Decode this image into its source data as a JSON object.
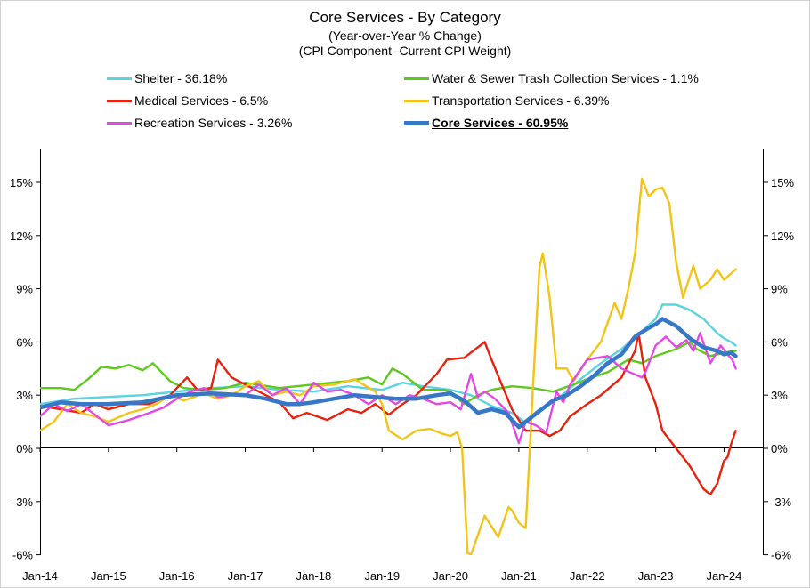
{
  "chart_data": {
    "type": "line",
    "title": "Core Services - By Category",
    "subtitle_1": "(Year-over-Year % Change)",
    "subtitle_2": "(CPI Component -Current CPI Weight)",
    "xlabel": "",
    "ylabel": "",
    "ylim": [
      -6,
      17
    ],
    "y_ticks": [
      -6,
      -3,
      0,
      3,
      6,
      9,
      12,
      15
    ],
    "y_tick_labels": [
      "-6%",
      "-3%",
      "0%",
      "3%",
      "6%",
      "9%",
      "12%",
      "15%"
    ],
    "x_tick_labels": [
      "Jan-14",
      "Jan-15",
      "Jan-16",
      "Jan-17",
      "Jan-18",
      "Jan-19",
      "Jan-20",
      "Jan-21",
      "Jan-22",
      "Jan-23",
      "Jan-24"
    ],
    "x_range_years": [
      2014.0,
      2024.58
    ],
    "grid": false,
    "legend_placement": "top",
    "series": [
      {
        "name": "Shelter - 36.18%",
        "color": "#5bd3e0",
        "points": [
          [
            2014.0,
            2.5
          ],
          [
            2014.5,
            2.8
          ],
          [
            2015.0,
            2.9
          ],
          [
            2015.5,
            3.0
          ],
          [
            2016.0,
            3.2
          ],
          [
            2016.5,
            3.4
          ],
          [
            2017.0,
            3.5
          ],
          [
            2017.5,
            3.3
          ],
          [
            2018.0,
            3.2
          ],
          [
            2018.5,
            3.5
          ],
          [
            2019.0,
            3.3
          ],
          [
            2019.3,
            3.7
          ],
          [
            2019.6,
            3.5
          ],
          [
            2020.0,
            3.3
          ],
          [
            2020.3,
            3.0
          ],
          [
            2020.6,
            2.4
          ],
          [
            2020.9,
            2.0
          ],
          [
            2021.08,
            1.5
          ],
          [
            2021.3,
            2.2
          ],
          [
            2021.6,
            2.9
          ],
          [
            2021.9,
            3.9
          ],
          [
            2022.2,
            4.8
          ],
          [
            2022.5,
            5.6
          ],
          [
            2022.8,
            6.6
          ],
          [
            2023.0,
            7.3
          ],
          [
            2023.1,
            8.1
          ],
          [
            2023.3,
            8.1
          ],
          [
            2023.5,
            7.8
          ],
          [
            2023.7,
            7.3
          ],
          [
            2023.9,
            6.5
          ],
          [
            2024.0,
            6.2
          ],
          [
            2024.1,
            6.0
          ],
          [
            2024.17,
            5.8
          ]
        ]
      },
      {
        "name": "Water & Sewer Trash Collection Services - 1.1%",
        "color": "#5fc81e",
        "points": [
          [
            2014.0,
            3.4
          ],
          [
            2014.3,
            3.4
          ],
          [
            2014.5,
            3.3
          ],
          [
            2014.7,
            3.9
          ],
          [
            2014.9,
            4.6
          ],
          [
            2015.1,
            4.5
          ],
          [
            2015.3,
            4.7
          ],
          [
            2015.5,
            4.4
          ],
          [
            2015.65,
            4.8
          ],
          [
            2015.9,
            3.8
          ],
          [
            2016.1,
            3.4
          ],
          [
            2016.4,
            3.3
          ],
          [
            2016.7,
            3.4
          ],
          [
            2017.0,
            3.7
          ],
          [
            2017.5,
            3.4
          ],
          [
            2018.0,
            3.6
          ],
          [
            2018.5,
            3.8
          ],
          [
            2018.8,
            4.0
          ],
          [
            2019.0,
            3.6
          ],
          [
            2019.15,
            4.5
          ],
          [
            2019.3,
            4.2
          ],
          [
            2019.6,
            3.3
          ],
          [
            2019.9,
            3.3
          ],
          [
            2020.0,
            3.2
          ],
          [
            2020.2,
            2.5
          ],
          [
            2020.4,
            3.0
          ],
          [
            2020.6,
            3.3
          ],
          [
            2020.9,
            3.5
          ],
          [
            2021.2,
            3.4
          ],
          [
            2021.5,
            3.2
          ],
          [
            2021.8,
            3.6
          ],
          [
            2022.0,
            3.9
          ],
          [
            2022.3,
            4.3
          ],
          [
            2022.6,
            5.0
          ],
          [
            2022.8,
            4.8
          ],
          [
            2023.0,
            5.2
          ],
          [
            2023.3,
            5.6
          ],
          [
            2023.5,
            6.0
          ],
          [
            2023.6,
            5.6
          ],
          [
            2023.8,
            5.2
          ],
          [
            2024.0,
            5.4
          ],
          [
            2024.17,
            5.5
          ]
        ]
      },
      {
        "name": "Medical Services - 6.5%",
        "color": "#e8200c",
        "points": [
          [
            2014.0,
            2.4
          ],
          [
            2014.3,
            2.2
          ],
          [
            2014.6,
            2.0
          ],
          [
            2014.8,
            2.5
          ],
          [
            2015.0,
            2.2
          ],
          [
            2015.3,
            2.5
          ],
          [
            2015.6,
            2.5
          ],
          [
            2015.9,
            3.0
          ],
          [
            2016.15,
            4.0
          ],
          [
            2016.3,
            3.3
          ],
          [
            2016.5,
            3.4
          ],
          [
            2016.6,
            5.0
          ],
          [
            2016.8,
            4.0
          ],
          [
            2017.0,
            3.6
          ],
          [
            2017.3,
            3.0
          ],
          [
            2017.5,
            2.6
          ],
          [
            2017.7,
            1.7
          ],
          [
            2017.9,
            2.0
          ],
          [
            2018.2,
            1.6
          ],
          [
            2018.5,
            2.2
          ],
          [
            2018.7,
            2.0
          ],
          [
            2018.9,
            2.5
          ],
          [
            2019.1,
            1.9
          ],
          [
            2019.3,
            2.5
          ],
          [
            2019.5,
            3.0
          ],
          [
            2019.8,
            4.2
          ],
          [
            2019.95,
            5.0
          ],
          [
            2020.2,
            5.1
          ],
          [
            2020.4,
            5.7
          ],
          [
            2020.5,
            6.0
          ],
          [
            2020.6,
            5.0
          ],
          [
            2020.75,
            3.6
          ],
          [
            2020.9,
            2.2
          ],
          [
            2021.1,
            1.0
          ],
          [
            2021.3,
            1.0
          ],
          [
            2021.45,
            0.7
          ],
          [
            2021.6,
            1.0
          ],
          [
            2021.75,
            1.8
          ],
          [
            2022.0,
            2.5
          ],
          [
            2022.2,
            3.0
          ],
          [
            2022.5,
            4.0
          ],
          [
            2022.7,
            5.5
          ],
          [
            2022.75,
            6.5
          ],
          [
            2022.85,
            4.0
          ],
          [
            2023.0,
            2.5
          ],
          [
            2023.1,
            1.0
          ],
          [
            2023.3,
            0.0
          ],
          [
            2023.5,
            -1.0
          ],
          [
            2023.7,
            -2.3
          ],
          [
            2023.8,
            -2.6
          ],
          [
            2023.9,
            -2.0
          ],
          [
            2024.0,
            -0.7
          ],
          [
            2024.05,
            -0.5
          ],
          [
            2024.1,
            0.2
          ],
          [
            2024.17,
            1.0
          ]
        ]
      },
      {
        "name": "Transportation Services - 6.39%",
        "color": "#f2c418",
        "points": [
          [
            2014.0,
            1.0
          ],
          [
            2014.2,
            1.5
          ],
          [
            2014.4,
            2.5
          ],
          [
            2014.6,
            2.0
          ],
          [
            2014.8,
            1.8
          ],
          [
            2015.0,
            1.5
          ],
          [
            2015.3,
            2.0
          ],
          [
            2015.5,
            2.2
          ],
          [
            2015.7,
            2.5
          ],
          [
            2015.9,
            3.0
          ],
          [
            2016.1,
            2.7
          ],
          [
            2016.4,
            3.1
          ],
          [
            2016.6,
            2.8
          ],
          [
            2016.8,
            3.0
          ],
          [
            2017.0,
            3.5
          ],
          [
            2017.2,
            3.8
          ],
          [
            2017.4,
            3.0
          ],
          [
            2017.6,
            3.2
          ],
          [
            2017.8,
            3.0
          ],
          [
            2018.0,
            3.5
          ],
          [
            2018.3,
            3.6
          ],
          [
            2018.6,
            3.9
          ],
          [
            2018.9,
            3.2
          ],
          [
            2019.0,
            2.5
          ],
          [
            2019.1,
            1.0
          ],
          [
            2019.3,
            0.5
          ],
          [
            2019.5,
            1.0
          ],
          [
            2019.7,
            1.1
          ],
          [
            2019.9,
            0.8
          ],
          [
            2020.0,
            0.7
          ],
          [
            2020.1,
            0.9
          ],
          [
            2020.17,
            0.0
          ],
          [
            2020.25,
            -5.9
          ],
          [
            2020.3,
            -6.0
          ],
          [
            2020.5,
            -3.8
          ],
          [
            2020.7,
            -5.0
          ],
          [
            2020.85,
            -3.3
          ],
          [
            2020.9,
            -3.5
          ],
          [
            2021.0,
            -4.2
          ],
          [
            2021.1,
            -4.5
          ],
          [
            2021.2,
            3.0
          ],
          [
            2021.3,
            10.2
          ],
          [
            2021.35,
            11.0
          ],
          [
            2021.45,
            8.5
          ],
          [
            2021.55,
            4.5
          ],
          [
            2021.7,
            4.5
          ],
          [
            2021.8,
            3.8
          ],
          [
            2022.0,
            5.0
          ],
          [
            2022.2,
            6.0
          ],
          [
            2022.4,
            8.2
          ],
          [
            2022.5,
            7.3
          ],
          [
            2022.6,
            9.0
          ],
          [
            2022.7,
            11.0
          ],
          [
            2022.8,
            15.2
          ],
          [
            2022.9,
            14.2
          ],
          [
            2023.0,
            14.6
          ],
          [
            2023.1,
            14.7
          ],
          [
            2023.2,
            13.8
          ],
          [
            2023.3,
            10.5
          ],
          [
            2023.4,
            8.5
          ],
          [
            2023.55,
            10.3
          ],
          [
            2023.65,
            9.0
          ],
          [
            2023.8,
            9.5
          ],
          [
            2023.9,
            10.1
          ],
          [
            2024.0,
            9.5
          ],
          [
            2024.17,
            10.1
          ]
        ]
      },
      {
        "name": "Recreation Services - 3.26%",
        "color": "#e448e4",
        "points": [
          [
            2014.0,
            1.8
          ],
          [
            2014.2,
            2.5
          ],
          [
            2014.4,
            2.1
          ],
          [
            2014.6,
            2.5
          ],
          [
            2014.8,
            1.9
          ],
          [
            2015.0,
            1.3
          ],
          [
            2015.3,
            1.6
          ],
          [
            2015.6,
            2.0
          ],
          [
            2015.8,
            2.3
          ],
          [
            2016.0,
            2.8
          ],
          [
            2016.2,
            3.2
          ],
          [
            2016.4,
            3.4
          ],
          [
            2016.6,
            2.9
          ],
          [
            2016.8,
            3.0
          ],
          [
            2017.0,
            3.0
          ],
          [
            2017.2,
            3.6
          ],
          [
            2017.4,
            3.0
          ],
          [
            2017.6,
            3.4
          ],
          [
            2017.8,
            2.5
          ],
          [
            2018.0,
            3.7
          ],
          [
            2018.2,
            3.2
          ],
          [
            2018.4,
            3.3
          ],
          [
            2018.6,
            3.0
          ],
          [
            2018.8,
            2.5
          ],
          [
            2019.0,
            3.0
          ],
          [
            2019.2,
            2.5
          ],
          [
            2019.4,
            3.0
          ],
          [
            2019.6,
            2.8
          ],
          [
            2019.8,
            2.5
          ],
          [
            2020.0,
            2.6
          ],
          [
            2020.15,
            2.2
          ],
          [
            2020.3,
            4.2
          ],
          [
            2020.4,
            2.9
          ],
          [
            2020.5,
            3.2
          ],
          [
            2020.65,
            2.8
          ],
          [
            2020.85,
            2.0
          ],
          [
            2021.0,
            0.3
          ],
          [
            2021.1,
            1.5
          ],
          [
            2021.25,
            1.3
          ],
          [
            2021.4,
            0.9
          ],
          [
            2021.55,
            3.2
          ],
          [
            2021.65,
            2.6
          ],
          [
            2021.75,
            3.6
          ],
          [
            2022.0,
            5.0
          ],
          [
            2022.3,
            5.2
          ],
          [
            2022.5,
            4.5
          ],
          [
            2022.8,
            4.0
          ],
          [
            2022.85,
            4.3
          ],
          [
            2023.0,
            5.8
          ],
          [
            2023.15,
            6.3
          ],
          [
            2023.3,
            5.7
          ],
          [
            2023.45,
            6.1
          ],
          [
            2023.55,
            5.5
          ],
          [
            2023.65,
            6.5
          ],
          [
            2023.8,
            4.8
          ],
          [
            2023.95,
            5.8
          ],
          [
            2024.05,
            5.3
          ],
          [
            2024.12,
            5.0
          ],
          [
            2024.17,
            4.5
          ]
        ]
      },
      {
        "name": "Core Services - 60.95%",
        "color": "#3777c8",
        "points": [
          [
            2014.0,
            2.3
          ],
          [
            2014.3,
            2.6
          ],
          [
            2014.6,
            2.5
          ],
          [
            2015.0,
            2.5
          ],
          [
            2015.5,
            2.6
          ],
          [
            2016.0,
            3.0
          ],
          [
            2016.5,
            3.1
          ],
          [
            2017.0,
            3.0
          ],
          [
            2017.3,
            2.8
          ],
          [
            2017.6,
            2.5
          ],
          [
            2017.8,
            2.5
          ],
          [
            2018.0,
            2.6
          ],
          [
            2018.3,
            2.8
          ],
          [
            2018.6,
            3.0
          ],
          [
            2018.9,
            2.9
          ],
          [
            2019.2,
            2.8
          ],
          [
            2019.5,
            2.8
          ],
          [
            2019.8,
            3.0
          ],
          [
            2020.0,
            3.1
          ],
          [
            2020.2,
            2.7
          ],
          [
            2020.4,
            2.0
          ],
          [
            2020.6,
            2.2
          ],
          [
            2020.8,
            2.0
          ],
          [
            2021.0,
            1.2
          ],
          [
            2021.1,
            1.5
          ],
          [
            2021.3,
            2.1
          ],
          [
            2021.5,
            2.7
          ],
          [
            2021.7,
            3.0
          ],
          [
            2021.9,
            3.5
          ],
          [
            2022.1,
            4.1
          ],
          [
            2022.3,
            4.8
          ],
          [
            2022.5,
            5.3
          ],
          [
            2022.7,
            6.3
          ],
          [
            2022.9,
            6.8
          ],
          [
            2023.0,
            7.0
          ],
          [
            2023.1,
            7.3
          ],
          [
            2023.3,
            6.9
          ],
          [
            2023.5,
            6.2
          ],
          [
            2023.7,
            5.7
          ],
          [
            2023.9,
            5.5
          ],
          [
            2024.0,
            5.3
          ],
          [
            2024.1,
            5.4
          ],
          [
            2024.17,
            5.2
          ]
        ]
      }
    ]
  }
}
